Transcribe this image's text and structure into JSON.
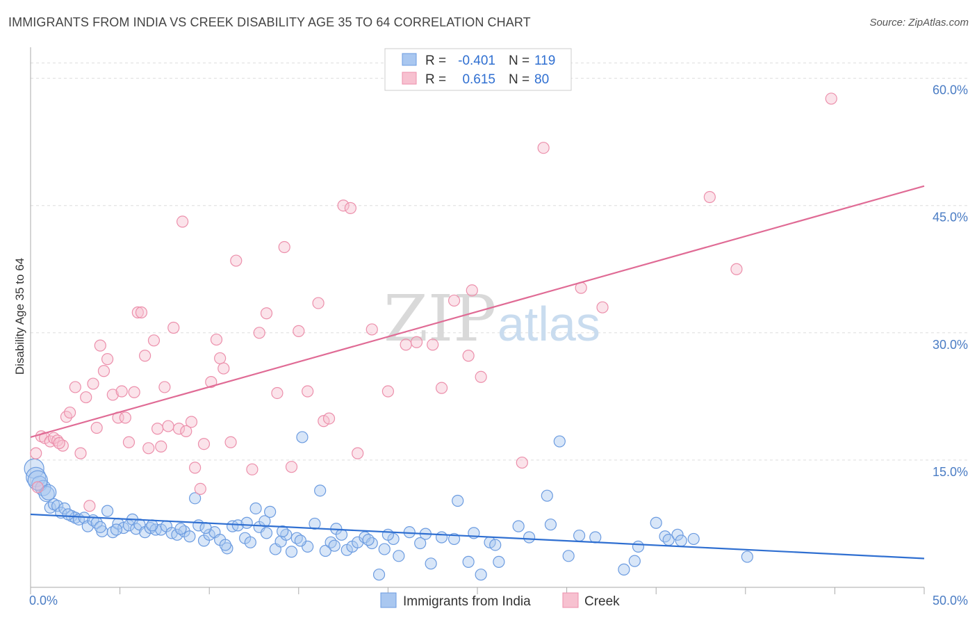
{
  "title": "IMMIGRANTS FROM INDIA VS CREEK DISABILITY AGE 35 TO 64 CORRELATION CHART",
  "source": "Source: ZipAtlas.com",
  "watermark": {
    "zip": "ZIP",
    "atlas": "atlas"
  },
  "colors": {
    "india_fill": "#a9c7f0",
    "india_stroke": "#6b9be0",
    "india_line": "#2f6fd1",
    "creek_fill": "#f7c1d0",
    "creek_stroke": "#ec8fab",
    "creek_line": "#e06b95",
    "grid": "#dddddd",
    "axis": "#aaaaaa"
  },
  "legend": {
    "r_label": "R =",
    "n_label": "N =",
    "india": {
      "r": "-0.401",
      "n": "119"
    },
    "creek": {
      "r": "0.615",
      "n": "80"
    }
  },
  "chart_data": {
    "type": "scatter",
    "title": "IMMIGRANTS FROM INDIA VS CREEK DISABILITY AGE 35 TO 64 CORRELATION CHART",
    "xlabel": "",
    "ylabel": "Disability Age 35 to 64",
    "xlim": [
      0,
      50
    ],
    "ylim": [
      0,
      63
    ],
    "x_tick_labels": [
      "0.0%",
      "50.0%"
    ],
    "y_ticks": [
      15,
      30,
      45,
      60
    ],
    "y_tick_labels": [
      "15.0%",
      "30.0%",
      "45.0%",
      "60.0%"
    ],
    "legend_position": "top-center",
    "series": [
      {
        "name": "Immigrants from India",
        "trend": {
          "x": [
            0,
            50
          ],
          "y": [
            8.6,
            3.4
          ]
        },
        "points": [
          [
            0.2,
            14.0
          ],
          [
            0.3,
            13.0
          ],
          [
            0.5,
            12.2
          ],
          [
            0.7,
            11.7
          ],
          [
            0.9,
            11.0
          ],
          [
            1.1,
            9.4
          ],
          [
            1.3,
            9.8
          ],
          [
            1.5,
            9.6
          ],
          [
            1.7,
            8.8
          ],
          [
            1.9,
            9.3
          ],
          [
            2.3,
            8.4
          ],
          [
            2.5,
            8.2
          ],
          [
            2.7,
            8.0
          ],
          [
            3.0,
            8.2
          ],
          [
            3.2,
            7.2
          ],
          [
            3.5,
            7.9
          ],
          [
            3.7,
            7.6
          ],
          [
            4.0,
            6.6
          ],
          [
            4.3,
            9.0
          ],
          [
            4.6,
            6.5
          ],
          [
            4.9,
            7.5
          ],
          [
            5.2,
            7.0
          ],
          [
            5.5,
            7.3
          ],
          [
            5.7,
            8.0
          ],
          [
            5.9,
            6.9
          ],
          [
            6.1,
            7.4
          ],
          [
            6.4,
            6.5
          ],
          [
            6.7,
            7.0
          ],
          [
            7.0,
            6.8
          ],
          [
            7.3,
            6.8
          ],
          [
            7.6,
            7.2
          ],
          [
            7.9,
            6.4
          ],
          [
            8.2,
            6.2
          ],
          [
            8.6,
            6.6
          ],
          [
            8.9,
            6.0
          ],
          [
            9.2,
            10.5
          ],
          [
            9.4,
            7.3
          ],
          [
            9.7,
            5.5
          ],
          [
            10.0,
            6.2
          ],
          [
            10.3,
            6.5
          ],
          [
            10.6,
            5.6
          ],
          [
            11.0,
            4.6
          ],
          [
            11.3,
            7.2
          ],
          [
            11.6,
            7.3
          ],
          [
            12.0,
            5.8
          ],
          [
            12.3,
            5.3
          ],
          [
            12.6,
            9.3
          ],
          [
            12.8,
            7.1
          ],
          [
            13.1,
            7.8
          ],
          [
            13.4,
            8.9
          ],
          [
            13.7,
            4.5
          ],
          [
            14.0,
            5.4
          ],
          [
            14.3,
            6.2
          ],
          [
            14.6,
            4.2
          ],
          [
            14.9,
            5.8
          ],
          [
            15.2,
            17.7
          ],
          [
            15.5,
            4.8
          ],
          [
            15.9,
            7.5
          ],
          [
            16.2,
            11.4
          ],
          [
            16.5,
            4.3
          ],
          [
            16.8,
            5.3
          ],
          [
            17.1,
            6.9
          ],
          [
            17.4,
            6.2
          ],
          [
            17.7,
            4.4
          ],
          [
            18.0,
            4.8
          ],
          [
            18.3,
            5.3
          ],
          [
            18.7,
            5.9
          ],
          [
            19.1,
            5.2
          ],
          [
            19.5,
            1.5
          ],
          [
            19.8,
            4.5
          ],
          [
            20.3,
            5.7
          ],
          [
            20.6,
            3.7
          ],
          [
            21.2,
            6.5
          ],
          [
            21.8,
            5.2
          ],
          [
            22.4,
            2.8
          ],
          [
            23.0,
            5.9
          ],
          [
            23.7,
            5.7
          ],
          [
            23.9,
            10.2
          ],
          [
            24.5,
            3.0
          ],
          [
            24.8,
            6.4
          ],
          [
            25.2,
            1.5
          ],
          [
            25.7,
            5.3
          ],
          [
            26.2,
            3.0
          ],
          [
            27.3,
            7.2
          ],
          [
            27.9,
            5.9
          ],
          [
            28.9,
            10.8
          ],
          [
            29.1,
            7.4
          ],
          [
            29.6,
            17.2
          ],
          [
            30.1,
            3.7
          ],
          [
            30.7,
            6.1
          ],
          [
            31.6,
            5.9
          ],
          [
            33.2,
            2.1
          ],
          [
            33.8,
            3.1
          ],
          [
            34.0,
            4.8
          ],
          [
            35.0,
            7.6
          ],
          [
            35.5,
            6.0
          ],
          [
            35.7,
            5.6
          ],
          [
            36.2,
            6.2
          ],
          [
            36.4,
            5.5
          ],
          [
            37.1,
            5.7
          ],
          [
            40.1,
            3.6
          ],
          [
            0.4,
            12.6
          ],
          [
            1.0,
            11.2
          ],
          [
            2.1,
            8.6
          ],
          [
            6.8,
            7.3
          ],
          [
            8.4,
            6.9
          ],
          [
            12.1,
            7.6
          ],
          [
            14.1,
            6.6
          ],
          [
            18.9,
            5.6
          ],
          [
            22.1,
            6.3
          ],
          [
            26.0,
            5.0
          ],
          [
            3.9,
            7.1
          ],
          [
            4.8,
            6.8
          ],
          [
            9.8,
            7.0
          ],
          [
            10.9,
            5.0
          ],
          [
            13.2,
            6.4
          ],
          [
            15.1,
            5.5
          ],
          [
            17.0,
            4.9
          ],
          [
            20.0,
            6.2
          ]
        ]
      },
      {
        "name": "Creek",
        "trend": {
          "x": [
            0,
            50
          ],
          "y": [
            17.7,
            47.3
          ]
        },
        "points": [
          [
            0.3,
            15.8
          ],
          [
            0.4,
            11.8
          ],
          [
            0.6,
            17.8
          ],
          [
            0.8,
            17.6
          ],
          [
            1.1,
            17.2
          ],
          [
            1.3,
            17.6
          ],
          [
            1.5,
            17.3
          ],
          [
            1.8,
            16.7
          ],
          [
            2.0,
            20.1
          ],
          [
            2.2,
            20.6
          ],
          [
            2.5,
            23.6
          ],
          [
            2.8,
            15.8
          ],
          [
            3.1,
            22.4
          ],
          [
            3.3,
            9.6
          ],
          [
            3.5,
            24.0
          ],
          [
            3.7,
            18.8
          ],
          [
            3.9,
            28.5
          ],
          [
            4.1,
            25.5
          ],
          [
            4.3,
            26.9
          ],
          [
            4.6,
            22.7
          ],
          [
            4.9,
            20.0
          ],
          [
            5.1,
            23.1
          ],
          [
            5.3,
            20.0
          ],
          [
            5.5,
            17.1
          ],
          [
            5.8,
            23.0
          ],
          [
            6.0,
            32.4
          ],
          [
            6.2,
            32.4
          ],
          [
            6.4,
            27.3
          ],
          [
            6.6,
            16.4
          ],
          [
            6.9,
            29.1
          ],
          [
            7.1,
            18.7
          ],
          [
            7.3,
            16.6
          ],
          [
            7.5,
            23.6
          ],
          [
            7.7,
            19.0
          ],
          [
            8.0,
            30.6
          ],
          [
            8.3,
            18.7
          ],
          [
            8.5,
            43.1
          ],
          [
            8.7,
            18.4
          ],
          [
            9.0,
            19.5
          ],
          [
            9.2,
            14.1
          ],
          [
            9.5,
            11.6
          ],
          [
            9.7,
            16.9
          ],
          [
            10.1,
            24.2
          ],
          [
            10.4,
            29.2
          ],
          [
            10.6,
            27.0
          ],
          [
            10.8,
            25.8
          ],
          [
            11.2,
            17.1
          ],
          [
            11.5,
            38.5
          ],
          [
            12.4,
            13.9
          ],
          [
            12.8,
            30.0
          ],
          [
            13.2,
            32.3
          ],
          [
            13.8,
            22.9
          ],
          [
            14.2,
            40.1
          ],
          [
            14.6,
            14.2
          ],
          [
            15.0,
            30.2
          ],
          [
            15.5,
            23.1
          ],
          [
            16.1,
            33.5
          ],
          [
            16.4,
            19.6
          ],
          [
            16.7,
            19.9
          ],
          [
            17.5,
            45.0
          ],
          [
            17.9,
            44.7
          ],
          [
            18.3,
            15.8
          ],
          [
            19.1,
            30.4
          ],
          [
            20.0,
            23.1
          ],
          [
            21.0,
            28.6
          ],
          [
            21.6,
            28.9
          ],
          [
            22.5,
            28.6
          ],
          [
            23.0,
            23.5
          ],
          [
            23.7,
            33.8
          ],
          [
            24.5,
            27.3
          ],
          [
            24.7,
            35.0
          ],
          [
            25.2,
            24.8
          ],
          [
            27.5,
            14.7
          ],
          [
            28.7,
            51.8
          ],
          [
            30.8,
            35.3
          ],
          [
            32.0,
            33.0
          ],
          [
            38.0,
            46.0
          ],
          [
            39.5,
            37.5
          ],
          [
            44.8,
            57.6
          ],
          [
            1.6,
            17.0
          ]
        ]
      }
    ]
  },
  "bottom_legend": {
    "india": "Immigrants from India",
    "creek": "Creek"
  }
}
